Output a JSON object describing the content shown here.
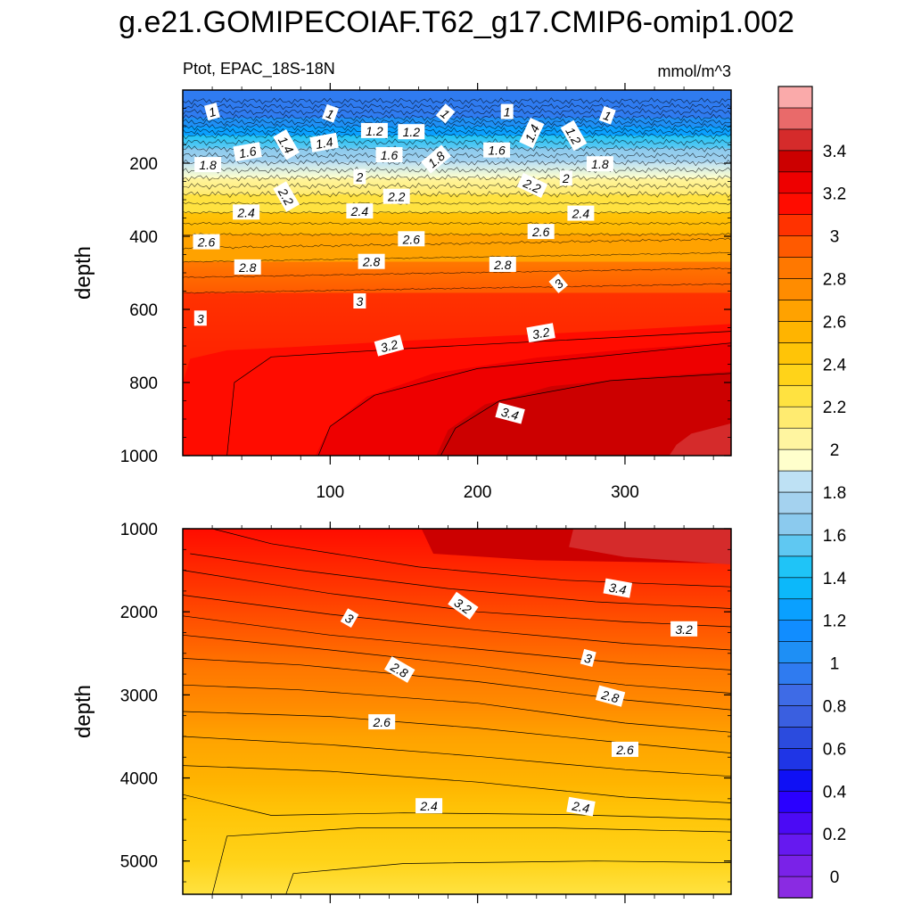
{
  "title": "g.e21.GOMIPECOIAF.T62_g17.CMIP6-omip1.002",
  "chart_data": {
    "type": "heatmap",
    "variable": "Ptot",
    "region": "EPAC_18S-18N",
    "left_subtitle": "Ptot, EPAC_18S-18N",
    "units": "mmol/m^3",
    "x_axis": {
      "range": [
        0,
        372
      ],
      "ticks": [
        100,
        200,
        300
      ],
      "tick_labels": [
        "100",
        "200",
        "300"
      ]
    },
    "panels": [
      {
        "name": "upper",
        "ylabel": "depth",
        "yrange": [
          0,
          1000
        ],
        "yticks": [
          200,
          400,
          600,
          800,
          1000
        ],
        "ytick_labels": [
          "200",
          "400",
          "600",
          "800",
          "1000"
        ],
        "contour_depths": [
          {
            "level": 1.0,
            "depth": 75
          },
          {
            "level": 1.2,
            "depth": 100
          },
          {
            "level": 1.4,
            "depth": 125
          },
          {
            "level": 1.6,
            "depth": 160
          },
          {
            "level": 1.8,
            "depth": 198
          },
          {
            "level": 2.0,
            "depth": 240
          },
          {
            "level": 2.2,
            "depth": 285
          },
          {
            "level": 2.4,
            "depth": 335
          },
          {
            "level": 2.6,
            "depth": 395
          },
          {
            "level": 2.8,
            "depth": 470
          },
          {
            "level": 3.0,
            "depth": 555
          }
        ],
        "contour_labels": [
          {
            "text": "1",
            "x": 20,
            "depth": 60,
            "angle": -15
          },
          {
            "text": "1",
            "x": 100,
            "depth": 65,
            "angle": 20
          },
          {
            "text": "1.2",
            "x": 130,
            "depth": 112,
            "angle": 0
          },
          {
            "text": "1.2",
            "x": 155,
            "depth": 115,
            "angle": 0
          },
          {
            "text": "1",
            "x": 178,
            "depth": 65,
            "angle": 40
          },
          {
            "text": "1",
            "x": 220,
            "depth": 60,
            "angle": 0
          },
          {
            "text": "1.4",
            "x": 237,
            "depth": 118,
            "angle": -65
          },
          {
            "text": "1.2",
            "x": 265,
            "depth": 125,
            "angle": 60
          },
          {
            "text": "1",
            "x": 288,
            "depth": 70,
            "angle": 20
          },
          {
            "text": "1.4",
            "x": 70,
            "depth": 150,
            "angle": 60
          },
          {
            "text": "1.4",
            "x": 96,
            "depth": 145,
            "angle": -10
          },
          {
            "text": "1.6",
            "x": 44,
            "depth": 170,
            "angle": -10
          },
          {
            "text": "1.6",
            "x": 140,
            "depth": 178,
            "angle": 0
          },
          {
            "text": "1.6",
            "x": 213,
            "depth": 165,
            "angle": 0
          },
          {
            "text": "1.8",
            "x": 17,
            "depth": 205,
            "angle": 0
          },
          {
            "text": "1.8",
            "x": 172,
            "depth": 190,
            "angle": -40
          },
          {
            "text": "1.8",
            "x": 283,
            "depth": 203,
            "angle": 0
          },
          {
            "text": "2",
            "x": 120,
            "depth": 238,
            "angle": 0
          },
          {
            "text": "2",
            "x": 260,
            "depth": 242,
            "angle": 0
          },
          {
            "text": "2.2",
            "x": 70,
            "depth": 292,
            "angle": 60
          },
          {
            "text": "2.2",
            "x": 145,
            "depth": 292,
            "angle": 0
          },
          {
            "text": "2.2",
            "x": 237,
            "depth": 262,
            "angle": 25
          },
          {
            "text": "2.4",
            "x": 43,
            "depth": 335,
            "angle": 0
          },
          {
            "text": "2.4",
            "x": 120,
            "depth": 332,
            "angle": 0
          },
          {
            "text": "2.4",
            "x": 270,
            "depth": 338,
            "angle": 0
          },
          {
            "text": "2.6",
            "x": 16,
            "depth": 416,
            "angle": 0
          },
          {
            "text": "2.6",
            "x": 155,
            "depth": 408,
            "angle": 0
          },
          {
            "text": "2.6",
            "x": 243,
            "depth": 388,
            "angle": 0
          },
          {
            "text": "2.8",
            "x": 44,
            "depth": 485,
            "angle": 0
          },
          {
            "text": "2.8",
            "x": 128,
            "depth": 470,
            "angle": 0
          },
          {
            "text": "2.8",
            "x": 217,
            "depth": 478,
            "angle": 0
          },
          {
            "text": "3",
            "x": 12,
            "depth": 625,
            "angle": 0
          },
          {
            "text": "3",
            "x": 120,
            "depth": 578,
            "angle": 0
          },
          {
            "text": "3",
            "x": 255,
            "depth": 530,
            "angle": -40
          },
          {
            "text": "3.2",
            "x": 140,
            "depth": 700,
            "angle": -15
          },
          {
            "text": "3.2",
            "x": 243,
            "depth": 665,
            "angle": -10
          },
          {
            "text": "3.4",
            "x": 222,
            "depth": 885,
            "angle": 15
          }
        ]
      },
      {
        "name": "lower",
        "ylabel": "depth",
        "yrange": [
          1000,
          5400
        ],
        "yticks": [
          1000,
          2000,
          3000,
          4000,
          5000
        ],
        "ytick_labels": [
          "1000",
          "2000",
          "3000",
          "4000",
          "5000"
        ],
        "contour_labels": [
          {
            "text": "3.4",
            "x": 295,
            "depth": 1720,
            "angle": 10
          },
          {
            "text": "3.2",
            "x": 190,
            "depth": 1930,
            "angle": 35
          },
          {
            "text": "3.2",
            "x": 340,
            "depth": 2210,
            "angle": 0
          },
          {
            "text": "3",
            "x": 113,
            "depth": 2080,
            "angle": 30
          },
          {
            "text": "3",
            "x": 275,
            "depth": 2560,
            "angle": 15
          },
          {
            "text": "2.8",
            "x": 147,
            "depth": 2700,
            "angle": 30
          },
          {
            "text": "2.8",
            "x": 290,
            "depth": 3020,
            "angle": 15
          },
          {
            "text": "2.6",
            "x": 135,
            "depth": 3330,
            "angle": 0
          },
          {
            "text": "2.6",
            "x": 300,
            "depth": 3660,
            "angle": 0
          },
          {
            "text": "2.4",
            "x": 167,
            "depth": 4340,
            "angle": 0
          },
          {
            "text": "2.4",
            "x": 270,
            "depth": 4350,
            "angle": 10
          }
        ]
      }
    ],
    "colorbar": {
      "levels": [
        -0.1,
        0,
        0.1,
        0.2,
        0.3,
        0.4,
        0.5,
        0.6,
        0.7,
        0.8,
        0.9,
        1.0,
        1.1,
        1.2,
        1.3,
        1.4,
        1.5,
        1.6,
        1.7,
        1.8,
        1.9,
        2.0,
        2.1,
        2.2,
        2.3,
        2.4,
        2.5,
        2.6,
        2.7,
        2.8,
        2.9,
        3.0,
        3.1,
        3.2,
        3.3,
        3.4,
        3.5,
        3.6
      ],
      "colors": [
        "#8A2BE2",
        "#7A22E8",
        "#6619F0",
        "#4B0AF5",
        "#2A00FF",
        "#0F10F5",
        "#1F35E6",
        "#2B4BDE",
        "#3A5FE0",
        "#3E6BE6",
        "#2F7BF0",
        "#1E8FF5",
        "#118DFF",
        "#0AA0FF",
        "#0CB8FA",
        "#1FC4F7",
        "#5FC8F2",
        "#8BCAEE",
        "#A4D2EF",
        "#BEE1F4",
        "#FFFFCC",
        "#FFF5A0",
        "#FFEB70",
        "#FFE240",
        "#FFD319",
        "#FFC407",
        "#FFB400",
        "#FFA200",
        "#FF8C00",
        "#FF7800",
        "#FF5A00",
        "#FF3200",
        "#FF0C00",
        "#EE0000",
        "#CC0000",
        "#D52B2B",
        "#E96A6A",
        "#FAAAAA"
      ],
      "tick_labels": [
        {
          "value": 0,
          "text": "0"
        },
        {
          "value": 0.2,
          "text": "0.2"
        },
        {
          "value": 0.4,
          "text": "0.4"
        },
        {
          "value": 0.6,
          "text": "0.6"
        },
        {
          "value": 0.8,
          "text": "0.8"
        },
        {
          "value": 1.0,
          "text": "1"
        },
        {
          "value": 1.2,
          "text": "1.2"
        },
        {
          "value": 1.4,
          "text": "1.4"
        },
        {
          "value": 1.6,
          "text": "1.6"
        },
        {
          "value": 1.8,
          "text": "1.8"
        },
        {
          "value": 2.0,
          "text": "2"
        },
        {
          "value": 2.2,
          "text": "2.2"
        },
        {
          "value": 2.4,
          "text": "2.4"
        },
        {
          "value": 2.6,
          "text": "2.6"
        },
        {
          "value": 2.8,
          "text": "2.8"
        },
        {
          "value": 3.0,
          "text": "3"
        },
        {
          "value": 3.2,
          "text": "3.2"
        },
        {
          "value": 3.4,
          "text": "3.4"
        }
      ]
    }
  }
}
